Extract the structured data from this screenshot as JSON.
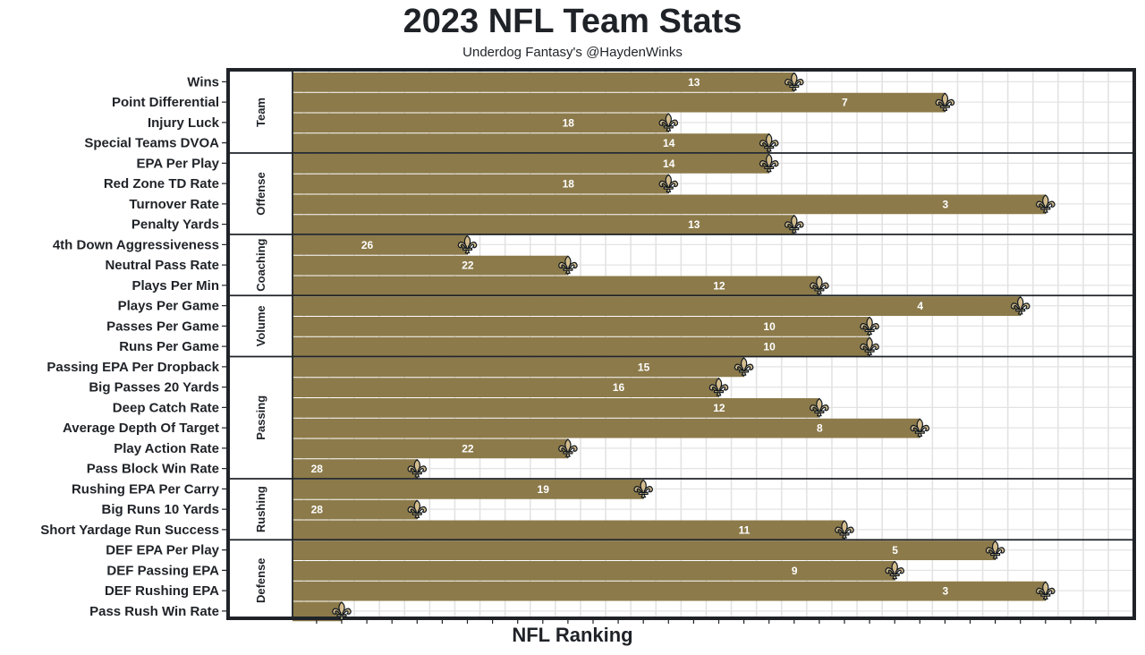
{
  "chart_data": {
    "type": "bar",
    "orientation": "horizontal",
    "title": "2023 NFL Team Stats",
    "subtitle": "Underdog Fantasy's @HaydenWinks",
    "xlabel": "NFL Ranking",
    "ylabel": "",
    "x_reversed": true,
    "xlim": [
      32.3,
      1
    ],
    "grid": true,
    "legend": "none",
    "colors": {
      "bar": "#8c7a4a",
      "marker_fill": "#d3bc8d",
      "marker_stroke": "#101820",
      "grid": "#e3e3e3",
      "frame": "#1f2328"
    },
    "marker_icon": "fleur-de-lis-icon",
    "groups": [
      {
        "name": "Team",
        "categories": [
          "Wins",
          "Point Differential",
          "Injury Luck",
          "Special Teams DVOA"
        ],
        "values": [
          13,
          7,
          18,
          14
        ]
      },
      {
        "name": "Offense",
        "categories": [
          "EPA Per Play",
          "Red Zone TD Rate",
          "Turnover Rate",
          "Penalty Yards"
        ],
        "values": [
          14,
          18,
          3,
          13
        ]
      },
      {
        "name": "Coaching",
        "categories": [
          "4th Down Aggressiveness",
          "Neutral Pass Rate",
          "Plays Per Min"
        ],
        "values": [
          26,
          22,
          12
        ]
      },
      {
        "name": "Volume",
        "categories": [
          "Plays Per Game",
          "Passes Per Game",
          "Runs Per Game"
        ],
        "values": [
          4,
          10,
          10
        ]
      },
      {
        "name": "Passing",
        "categories": [
          "Passing EPA Per Dropback",
          "Big Passes 20 Yards",
          "Deep Catch Rate",
          "Average Depth Of Target",
          "Play Action Rate",
          "Pass Block Win Rate"
        ],
        "values": [
          15,
          16,
          12,
          8,
          22,
          28
        ]
      },
      {
        "name": "Rushing",
        "categories": [
          "Rushing EPA Per Carry",
          "Big Runs 10 Yards",
          "Short Yardage Run Success"
        ],
        "values": [
          19,
          28,
          11
        ]
      },
      {
        "name": "Defense",
        "categories": [
          "DEF EPA Per Play",
          "DEF Passing EPA",
          "DEF Rushing EPA",
          "Pass Rush Win Rate"
        ],
        "values": [
          5,
          9,
          3,
          31
        ]
      }
    ]
  }
}
